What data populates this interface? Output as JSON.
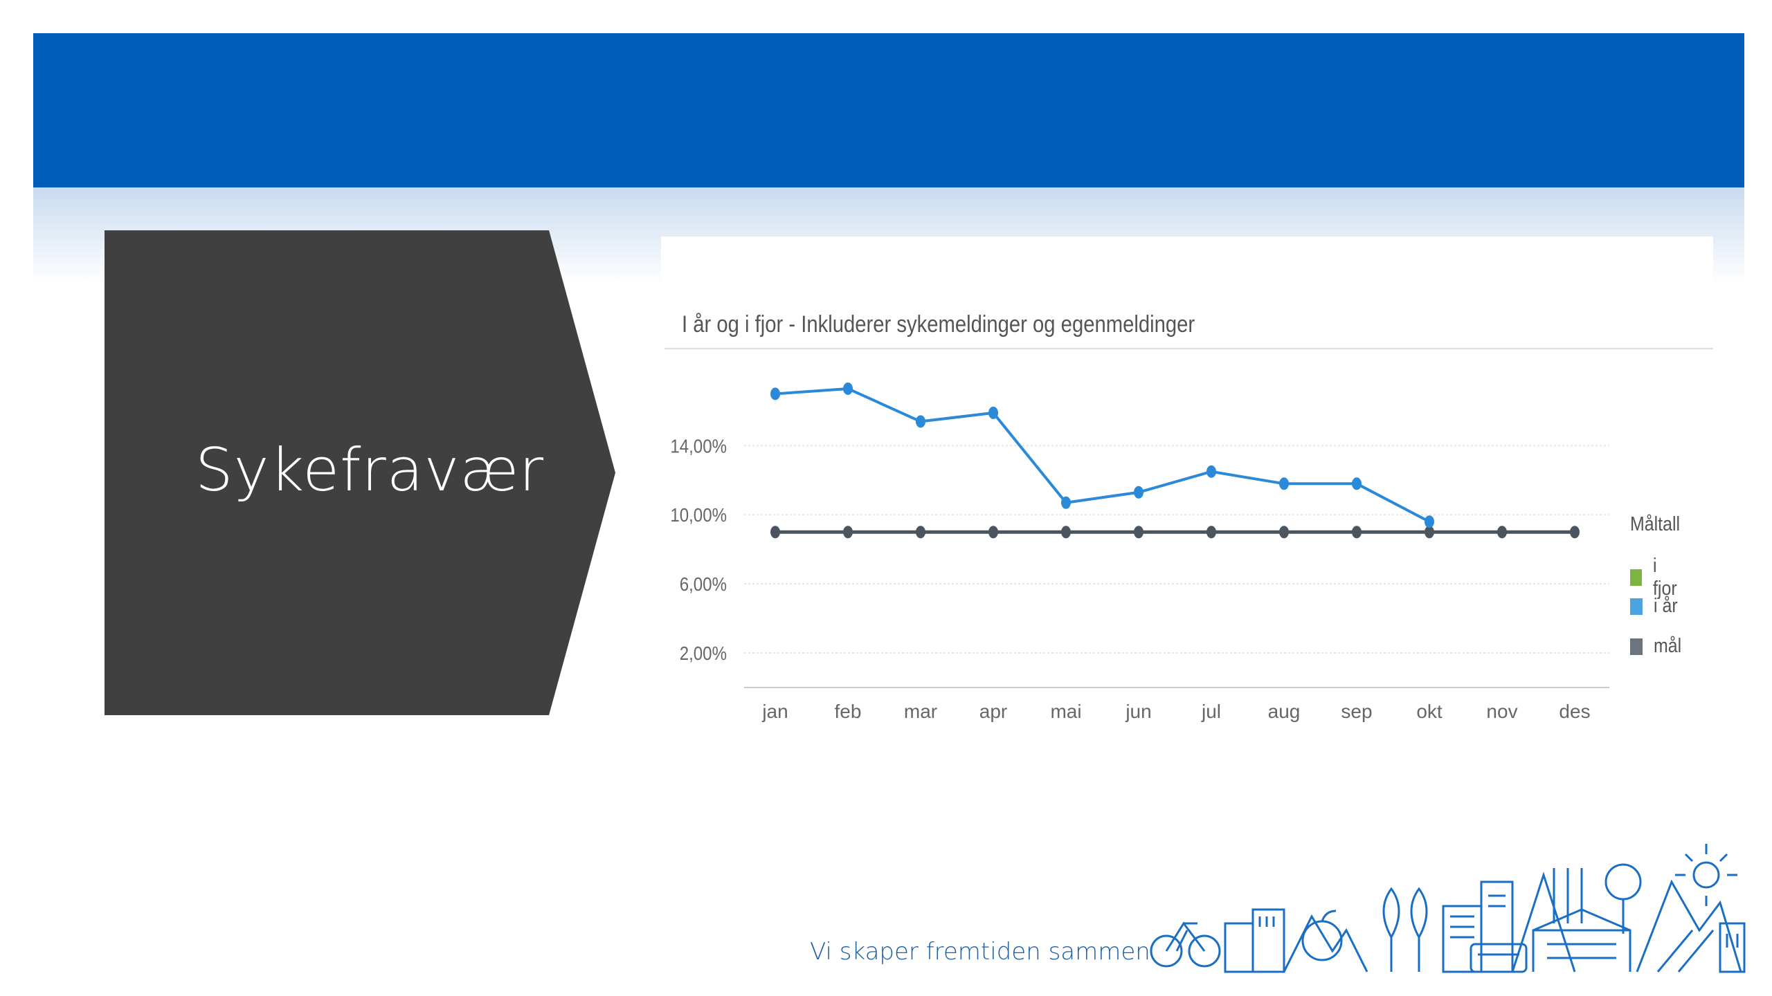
{
  "slide": {
    "title": "Sykefravær",
    "tagline": "Vi skaper fremtiden sammen"
  },
  "colors": {
    "banner": "#005EB8",
    "title_box": "#404040",
    "series_i_fjor": "#7CB342",
    "series_i_ar": "#2A89D8",
    "series_mal": "#4A5560"
  },
  "chart_data": {
    "type": "line",
    "title": "I år og i fjor - Inkluderer sykemeldinger og egenmeldinger",
    "categories": [
      "jan",
      "feb",
      "mar",
      "apr",
      "mai",
      "jun",
      "jul",
      "aug",
      "sep",
      "okt",
      "nov",
      "des"
    ],
    "y_ticks": [
      "2,00%",
      "6,00%",
      "10,00%",
      "14,00%"
    ],
    "ylim": [
      0,
      19.5
    ],
    "grid": true,
    "legend": {
      "title": "Måltall",
      "placement": "right",
      "items": [
        {
          "label": "i fjor",
          "color": "#7CB342"
        },
        {
          "label": "i år",
          "color": "#2A89D8"
        },
        {
          "label": "mål",
          "color": "#4A5560"
        }
      ]
    },
    "series": [
      {
        "name": "i år",
        "color": "#2A89D8",
        "values": [
          17.0,
          17.3,
          15.4,
          15.9,
          10.7,
          11.3,
          12.5,
          11.8,
          11.8,
          9.6,
          null,
          null
        ]
      },
      {
        "name": "mål",
        "color": "#4A5560",
        "values": [
          9.0,
          9.0,
          9.0,
          9.0,
          9.0,
          9.0,
          9.0,
          9.0,
          9.0,
          9.0,
          9.0,
          9.0
        ]
      }
    ]
  }
}
